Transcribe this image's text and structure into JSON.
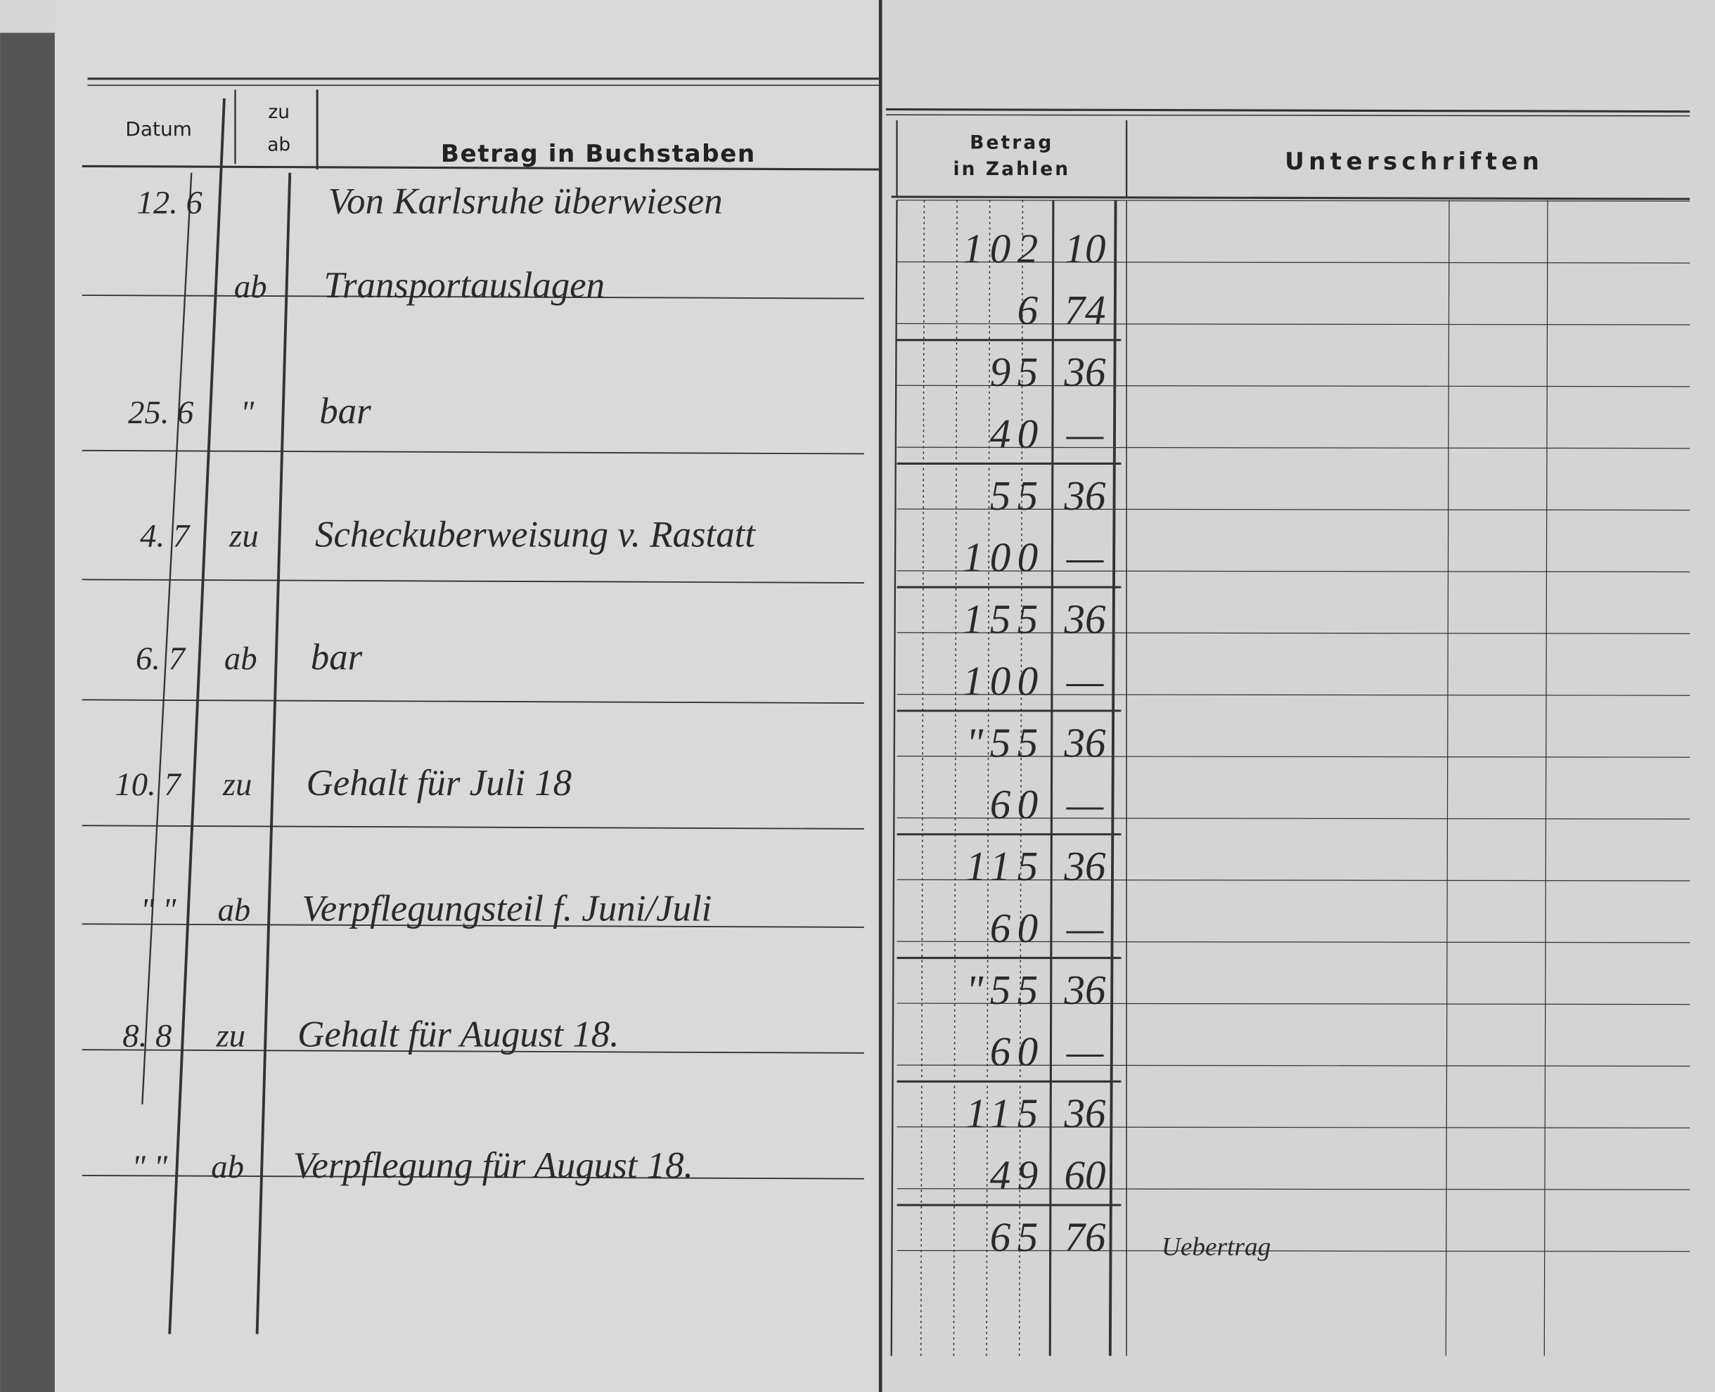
{
  "header": {
    "datum": "Datum",
    "zu": "zu",
    "ab": "ab",
    "betrag_buchstaben": "Betrag in Buchstaben",
    "betrag": "Betrag",
    "in_zahlen": "in Zahlen",
    "unterschriften": "Unterschriften"
  },
  "entries": [
    {
      "date": "12. 6",
      "text": "Von Karlsruhe überwiesen"
    },
    {
      "zu_ab": "ab",
      "text": "Transportauslagen"
    },
    {
      "date": "25. 6",
      "zu_ab": "\"",
      "text": "bar"
    },
    {
      "date": "4. 7",
      "zu_ab": "zu",
      "text": "Scheckuberweisung v. Rastatt"
    },
    {
      "date": "6. 7",
      "zu_ab": "ab",
      "text": "bar"
    },
    {
      "date": "10. 7",
      "zu_ab": "zu",
      "text": "Gehalt für Juli 18"
    },
    {
      "date": "\"   \"",
      "zu_ab": "ab",
      "text": "Verpflegungsteil f. Juni/Juli"
    },
    {
      "date": "8. 8",
      "zu_ab": "zu",
      "text": "Gehalt für August 18."
    },
    {
      "date": "\"   \"",
      "zu_ab": "ab",
      "text": "Verpflegung für August 18."
    }
  ],
  "amounts": [
    {
      "mark": "102",
      "pf": "10"
    },
    {
      "mark": "6",
      "pf": "74"
    },
    {
      "mark": "95",
      "pf": "36"
    },
    {
      "mark": "40",
      "pf": "—"
    },
    {
      "mark": "55",
      "pf": "36"
    },
    {
      "mark": "100",
      "pf": "—"
    },
    {
      "mark": "155",
      "pf": "36"
    },
    {
      "mark": "100",
      "pf": "—"
    },
    {
      "mark": "\"55",
      "pf": "36"
    },
    {
      "mark": "60",
      "pf": "—"
    },
    {
      "mark": "115",
      "pf": "36"
    },
    {
      "mark": "60",
      "pf": "—"
    },
    {
      "mark": "\"55",
      "pf": "36"
    },
    {
      "mark": "60",
      "pf": "—"
    },
    {
      "mark": "115",
      "pf": "36"
    },
    {
      "mark": "49",
      "pf": "60"
    },
    {
      "mark": "65",
      "pf": "76"
    }
  ],
  "uebertrag": "Uebertrag"
}
